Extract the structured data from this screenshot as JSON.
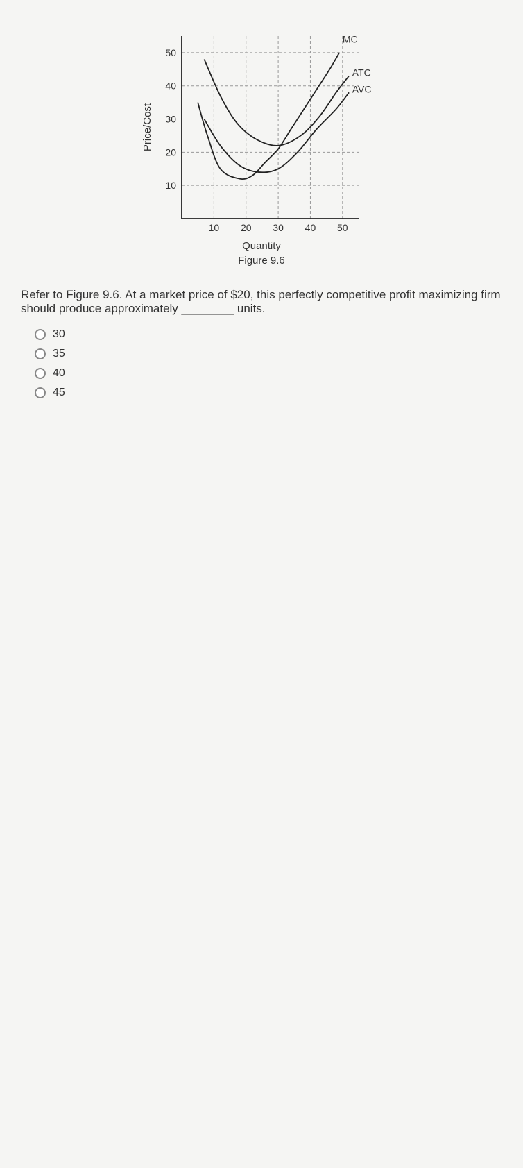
{
  "chart": {
    "y_axis_label": "Price/Cost",
    "x_axis_label": "Quantity",
    "figure_label": "Figure 9.6",
    "y_ticks": [
      10,
      20,
      30,
      40,
      50
    ],
    "x_ticks": [
      10,
      20,
      30,
      40,
      50
    ],
    "xlim": [
      0,
      55
    ],
    "ylim": [
      0,
      55
    ],
    "grid_color": "#999",
    "axis_color": "#222",
    "curve_color": "#222",
    "background_color": "#f5f5f3",
    "curves": {
      "MC": {
        "label": "MC",
        "label_x": 50,
        "label_y": 53,
        "points": [
          [
            5,
            35
          ],
          [
            8,
            25
          ],
          [
            12,
            15
          ],
          [
            18,
            12
          ],
          [
            22,
            13
          ],
          [
            26,
            17
          ],
          [
            30,
            21
          ],
          [
            34,
            27
          ],
          [
            38,
            33
          ],
          [
            42,
            39
          ],
          [
            46,
            45
          ],
          [
            49,
            50
          ]
        ]
      },
      "ATC": {
        "label": "ATC",
        "label_x": 53,
        "label_y": 43,
        "points": [
          [
            7,
            48
          ],
          [
            12,
            37
          ],
          [
            17,
            29
          ],
          [
            23,
            24
          ],
          [
            30,
            22
          ],
          [
            37,
            25
          ],
          [
            43,
            31
          ],
          [
            48,
            38
          ],
          [
            52,
            43
          ]
        ]
      },
      "AVC": {
        "label": "AVC",
        "label_x": 53,
        "label_y": 38,
        "points": [
          [
            7,
            30
          ],
          [
            12,
            22
          ],
          [
            18,
            16
          ],
          [
            24,
            14
          ],
          [
            30,
            15
          ],
          [
            36,
            20
          ],
          [
            42,
            27
          ],
          [
            48,
            33
          ],
          [
            52,
            38
          ]
        ]
      }
    }
  },
  "question_text": "Refer to Figure 9.6. At a market price of $20, this perfectly competitive profit maximizing firm should produce approximately ________ units.",
  "options": [
    "30",
    "35",
    "40",
    "45"
  ]
}
